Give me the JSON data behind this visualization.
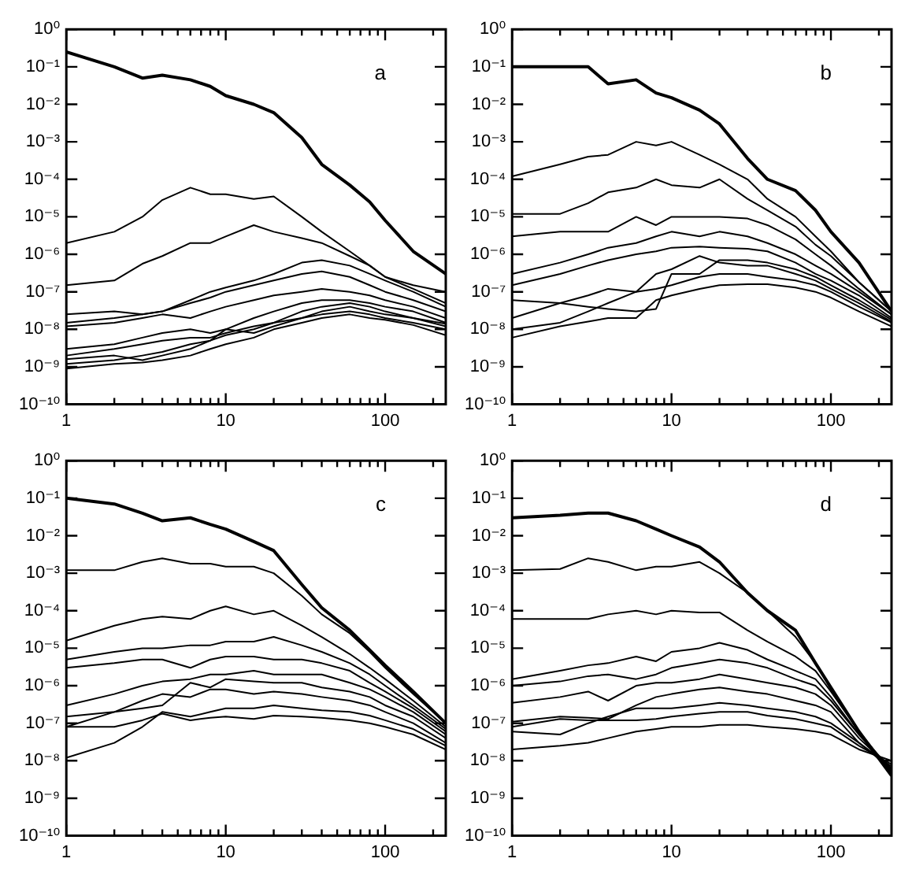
{
  "chart_data": [
    {
      "type": "line",
      "annotations": [
        "a"
      ],
      "log": "xy",
      "marker": "none",
      "xlim": [
        1,
        240
      ],
      "ylim": [
        1e-10,
        1
      ],
      "xticks": [
        1,
        {
          "value": 2,
          "label": null
        },
        {
          "value": 3,
          "label": null
        },
        {
          "value": 4,
          "label": null
        },
        {
          "value": 5,
          "label": null
        },
        {
          "value": 6,
          "label": null
        },
        {
          "value": 7,
          "label": null
        },
        {
          "value": 8,
          "label": null
        },
        {
          "value": 9,
          "label": null
        },
        10,
        {
          "value": 20,
          "label": null
        },
        {
          "value": 30,
          "label": null
        },
        {
          "value": 40,
          "label": null
        },
        {
          "value": 50,
          "label": null
        },
        {
          "value": 60,
          "label": null
        },
        {
          "value": 70,
          "label": null
        },
        {
          "value": 80,
          "label": null
        },
        {
          "value": 90,
          "label": null
        },
        100,
        {
          "value": 200,
          "label": null
        }
      ],
      "yticks": [
        {
          "value": 1,
          "label": "10⁰"
        },
        {
          "value": 0.1,
          "label": "10⁻¹"
        },
        {
          "value": 0.01,
          "label": "10⁻²"
        },
        {
          "value": 0.001,
          "label": "10⁻³"
        },
        {
          "value": 0.0001,
          "label": "10⁻⁴"
        },
        {
          "value": 1e-05,
          "label": "10⁻⁵"
        },
        {
          "value": 1e-06,
          "label": "10⁻⁶"
        },
        {
          "value": 1e-07,
          "label": "10⁻⁷"
        },
        {
          "value": 1e-08,
          "label": "10⁻⁸"
        },
        {
          "value": 1e-09,
          "label": "10⁻⁹"
        },
        {
          "value": 1e-10,
          "label": "10⁻¹⁰"
        }
      ],
      "x": [
        1,
        2,
        3,
        4,
        6,
        8,
        10,
        15,
        20,
        30,
        40,
        60,
        80,
        100,
        150,
        240
      ],
      "series": [
        {
          "color": "#000000",
          "values": [
            0.25,
            0.1,
            0.05,
            0.06,
            0.045,
            0.03,
            0.017,
            0.01,
            0.006,
            0.0013,
            0.00025,
            7e-05,
            2.5e-05,
            8e-06,
            1.2e-06,
            3e-07
          ]
        },
        {
          "color": "#000000",
          "values": [
            2e-06,
            4e-06,
            1e-05,
            2.8e-05,
            6e-05,
            4e-05,
            4e-05,
            3e-05,
            3.5e-05,
            1e-05,
            4e-06,
            1.2e-06,
            5e-07,
            2.5e-07,
            1.5e-07,
            1e-07
          ]
        },
        {
          "color": "#000000",
          "values": [
            1.5e-07,
            2e-07,
            5.6e-07,
            9e-07,
            2e-06,
            2e-06,
            3e-06,
            6e-06,
            4e-06,
            2.7e-06,
            2e-06,
            9e-07,
            5e-07,
            2.5e-07,
            1.2e-07,
            5e-08
          ]
        },
        {
          "color": "#000000",
          "values": [
            2.5e-08,
            3e-08,
            2.5e-08,
            3e-08,
            6e-08,
            1e-07,
            1.3e-07,
            2e-07,
            3e-07,
            6e-07,
            7e-07,
            5e-07,
            3e-07,
            2e-07,
            1e-07,
            4e-08
          ]
        },
        {
          "color": "#000000",
          "values": [
            1.5e-08,
            2e-08,
            2.5e-08,
            3e-08,
            5e-08,
            7e-08,
            1e-07,
            1.5e-07,
            2e-07,
            3e-07,
            3.5e-07,
            2.5e-07,
            1.5e-07,
            1e-07,
            6e-08,
            3e-08
          ]
        },
        {
          "color": "#000000",
          "values": [
            1.2e-08,
            1.5e-08,
            2e-08,
            2.5e-08,
            2e-08,
            3e-08,
            4e-08,
            6e-08,
            8e-08,
            1e-07,
            1.2e-07,
            1e-07,
            8e-08,
            6e-08,
            4e-08,
            2e-08
          ]
        },
        {
          "color": "#000000",
          "values": [
            3e-09,
            4e-09,
            6e-09,
            8e-09,
            1e-08,
            8e-09,
            1e-08,
            2e-08,
            3e-08,
            5e-08,
            6e-08,
            6e-08,
            5e-08,
            4e-08,
            3e-08,
            1.5e-08
          ]
        },
        {
          "color": "#000000",
          "values": [
            2e-09,
            3e-09,
            4e-09,
            5e-09,
            6e-09,
            6e-09,
            8e-09,
            1.2e-08,
            1.5e-08,
            3e-08,
            4e-08,
            5e-08,
            4e-08,
            3e-08,
            2e-08,
            1.2e-08
          ]
        },
        {
          "color": "#000000",
          "values": [
            1.6e-09,
            2e-09,
            1.5e-09,
            2e-09,
            3e-09,
            5e-09,
            1e-08,
            8e-09,
            1.2e-08,
            2e-08,
            3e-08,
            4e-08,
            3e-08,
            2.5e-08,
            2e-08,
            1.4e-08
          ]
        },
        {
          "color": "#000000",
          "values": [
            1.2e-09,
            1.5e-09,
            2e-09,
            2.5e-09,
            4e-09,
            5e-09,
            7e-09,
            1e-08,
            1.5e-08,
            2e-08,
            2.5e-08,
            3e-08,
            2.5e-08,
            2e-08,
            1.5e-08,
            1e-08
          ]
        },
        {
          "color": "#000000",
          "values": [
            9e-10,
            1.2e-09,
            1.3e-09,
            1.5e-09,
            2e-09,
            3e-09,
            4e-09,
            6e-09,
            1e-08,
            1.5e-08,
            2e-08,
            2.5e-08,
            2e-08,
            1.8e-08,
            1.3e-08,
            7e-09
          ]
        }
      ]
    },
    {
      "type": "line",
      "annotations": [
        "b"
      ],
      "log": "xy",
      "marker": "none",
      "xlim": [
        1,
        240
      ],
      "ylim": [
        1e-10,
        1
      ],
      "xticks": [
        1,
        {
          "value": 2,
          "label": null
        },
        {
          "value": 3,
          "label": null
        },
        {
          "value": 4,
          "label": null
        },
        {
          "value": 5,
          "label": null
        },
        {
          "value": 6,
          "label": null
        },
        {
          "value": 7,
          "label": null
        },
        {
          "value": 8,
          "label": null
        },
        {
          "value": 9,
          "label": null
        },
        10,
        {
          "value": 20,
          "label": null
        },
        {
          "value": 30,
          "label": null
        },
        {
          "value": 40,
          "label": null
        },
        {
          "value": 50,
          "label": null
        },
        {
          "value": 60,
          "label": null
        },
        {
          "value": 70,
          "label": null
        },
        {
          "value": 80,
          "label": null
        },
        {
          "value": 90,
          "label": null
        },
        100,
        {
          "value": 200,
          "label": null
        }
      ],
      "yticks": [
        {
          "value": 1,
          "label": "10⁰"
        },
        {
          "value": 0.1,
          "label": "10⁻¹"
        },
        {
          "value": 0.01,
          "label": "10⁻²"
        },
        {
          "value": 0.001,
          "label": "10⁻³"
        },
        {
          "value": 0.0001,
          "label": "10⁻⁴"
        },
        {
          "value": 1e-05,
          "label": "10⁻⁵"
        },
        {
          "value": 1e-06,
          "label": "10⁻⁶"
        },
        {
          "value": 1e-07,
          "label": "10⁻⁷"
        },
        {
          "value": 1e-08,
          "label": "10⁻⁸"
        },
        {
          "value": 1e-09,
          "label": "10⁻⁹"
        },
        {
          "value": 1e-10,
          "label": "10⁻¹⁰"
        }
      ],
      "x": [
        1,
        2,
        3,
        4,
        6,
        8,
        10,
        15,
        20,
        30,
        40,
        60,
        80,
        100,
        150,
        240
      ],
      "series": [
        {
          "color": "#000000",
          "values": [
            0.1,
            0.1,
            0.1,
            0.035,
            0.045,
            0.02,
            0.015,
            0.007,
            0.003,
            0.00036,
            0.0001,
            5e-05,
            1.5e-05,
            4e-06,
            6e-07,
            3e-08
          ]
        },
        {
          "color": "#000000",
          "values": [
            0.00012,
            0.00025,
            0.0004,
            0.00045,
            0.001,
            0.0008,
            0.001,
            0.00045,
            0.00025,
            0.0001,
            3e-05,
            1e-05,
            3e-06,
            1.2e-06,
            1.8e-07,
            3e-08
          ]
        },
        {
          "color": "#000000",
          "values": [
            1.2e-05,
            1.2e-05,
            2.3e-05,
            4.5e-05,
            6e-05,
            0.0001,
            7e-05,
            6e-05,
            0.0001,
            3e-05,
            1.5e-05,
            5.5e-06,
            1.8e-06,
            9e-07,
            1.8e-07,
            3e-08
          ]
        },
        {
          "color": "#000000",
          "values": [
            3e-06,
            4e-06,
            4e-06,
            4e-06,
            1e-05,
            6e-06,
            1e-05,
            1e-05,
            1e-05,
            9e-06,
            6e-06,
            2.5e-06,
            1e-06,
            5e-07,
            1.2e-07,
            2.5e-08
          ]
        },
        {
          "color": "#000000",
          "values": [
            3e-07,
            6e-07,
            1e-06,
            1.5e-06,
            2e-06,
            3e-06,
            4e-06,
            3e-06,
            4e-06,
            3e-06,
            2e-06,
            1e-06,
            5e-07,
            3e-07,
            1e-07,
            2.5e-08
          ]
        },
        {
          "color": "#000000",
          "values": [
            1.5e-07,
            3e-07,
            5e-07,
            7e-07,
            1e-06,
            1.2e-06,
            1.5e-06,
            1.6e-06,
            1.5e-06,
            1.4e-06,
            1.2e-06,
            6e-07,
            3e-07,
            2e-07,
            8e-08,
            2e-08
          ]
        },
        {
          "color": "#000000",
          "values": [
            6e-08,
            5e-08,
            4e-08,
            3.5e-08,
            3e-08,
            3.5e-08,
            3e-07,
            3e-07,
            7e-07,
            7e-07,
            6e-07,
            4e-07,
            2.5e-07,
            1.5e-07,
            6e-08,
            1.8e-08
          ]
        },
        {
          "color": "#000000",
          "values": [
            2e-08,
            5e-08,
            8e-08,
            1.2e-07,
            1e-07,
            3e-07,
            4e-07,
            9e-07,
            6e-07,
            5e-07,
            5e-07,
            3e-07,
            2e-07,
            1.2e-07,
            5e-08,
            1.6e-08
          ]
        },
        {
          "color": "#000000",
          "values": [
            1e-08,
            1.5e-08,
            3e-08,
            5e-08,
            1e-07,
            1.2e-07,
            1.5e-07,
            2.5e-07,
            3e-07,
            3e-07,
            2.5e-07,
            2e-07,
            1.5e-07,
            1e-07,
            4e-08,
            1.5e-08
          ]
        },
        {
          "color": "#000000",
          "values": [
            6e-09,
            1.2e-08,
            1.6e-08,
            2e-08,
            2e-08,
            6e-08,
            8e-08,
            1.2e-07,
            1.5e-07,
            1.6e-07,
            1.6e-07,
            1.3e-07,
            1e-07,
            7e-08,
            3e-08,
            1.2e-08
          ]
        }
      ]
    },
    {
      "type": "line",
      "annotations": [
        "c"
      ],
      "log": "xy",
      "marker": "none",
      "xlim": [
        1,
        240
      ],
      "ylim": [
        1e-10,
        1
      ],
      "xticks": [
        1,
        {
          "value": 2,
          "label": null
        },
        {
          "value": 3,
          "label": null
        },
        {
          "value": 4,
          "label": null
        },
        {
          "value": 5,
          "label": null
        },
        {
          "value": 6,
          "label": null
        },
        {
          "value": 7,
          "label": null
        },
        {
          "value": 8,
          "label": null
        },
        {
          "value": 9,
          "label": null
        },
        10,
        {
          "value": 20,
          "label": null
        },
        {
          "value": 30,
          "label": null
        },
        {
          "value": 40,
          "label": null
        },
        {
          "value": 50,
          "label": null
        },
        {
          "value": 60,
          "label": null
        },
        {
          "value": 70,
          "label": null
        },
        {
          "value": 80,
          "label": null
        },
        {
          "value": 90,
          "label": null
        },
        100,
        {
          "value": 200,
          "label": null
        }
      ],
      "yticks": [
        {
          "value": 1,
          "label": "10⁰"
        },
        {
          "value": 0.1,
          "label": "10⁻¹"
        },
        {
          "value": 0.01,
          "label": "10⁻²"
        },
        {
          "value": 0.001,
          "label": "10⁻³"
        },
        {
          "value": 0.0001,
          "label": "10⁻⁴"
        },
        {
          "value": 1e-05,
          "label": "10⁻⁵"
        },
        {
          "value": 1e-06,
          "label": "10⁻⁶"
        },
        {
          "value": 1e-07,
          "label": "10⁻⁷"
        },
        {
          "value": 1e-08,
          "label": "10⁻⁸"
        },
        {
          "value": 1e-09,
          "label": "10⁻⁹"
        },
        {
          "value": 1e-10,
          "label": "10⁻¹⁰"
        }
      ],
      "x": [
        1,
        2,
        3,
        4,
        6,
        8,
        10,
        15,
        20,
        30,
        40,
        60,
        80,
        100,
        150,
        240
      ],
      "series": [
        {
          "color": "#000000",
          "values": [
            0.1,
            0.07,
            0.04,
            0.025,
            0.03,
            0.02,
            0.015,
            0.007,
            0.004,
            0.0005,
            0.00012,
            3e-05,
            9e-06,
            3.5e-06,
            7e-07,
            1e-07
          ]
        },
        {
          "color": "#000000",
          "values": [
            0.0012,
            0.0012,
            0.002,
            0.0025,
            0.0018,
            0.0018,
            0.0015,
            0.0015,
            0.001,
            0.00025,
            8e-05,
            2.5e-05,
            8e-06,
            3e-06,
            6e-07,
            1e-07
          ]
        },
        {
          "color": "#000000",
          "values": [
            1.6e-05,
            4e-05,
            6e-05,
            7e-05,
            6e-05,
            0.0001,
            0.00013,
            8e-05,
            0.0001,
            4e-05,
            2e-05,
            7e-06,
            3e-06,
            1.5e-06,
            4e-07,
            8e-08
          ]
        },
        {
          "color": "#000000",
          "values": [
            5e-06,
            8e-06,
            1e-05,
            1e-05,
            1.2e-05,
            1.2e-05,
            1.5e-05,
            1.5e-05,
            2e-05,
            1.2e-05,
            8e-06,
            4e-06,
            2e-06,
            1e-06,
            3e-07,
            7e-08
          ]
        },
        {
          "color": "#000000",
          "values": [
            3e-06,
            4e-06,
            5e-06,
            5e-06,
            3e-06,
            5e-06,
            6e-06,
            6e-06,
            5e-06,
            5e-06,
            4e-06,
            2.5e-06,
            1.2e-06,
            7e-07,
            2.5e-07,
            6e-08
          ]
        },
        {
          "color": "#000000",
          "values": [
            3e-07,
            6e-07,
            1e-06,
            1.3e-06,
            1.5e-06,
            2e-06,
            2e-06,
            2.5e-06,
            2e-06,
            2e-06,
            2e-06,
            1.2e-06,
            8e-07,
            5e-07,
            2e-07,
            5e-08
          ]
        },
        {
          "color": "#000000",
          "values": [
            1.5e-07,
            2e-07,
            2.5e-07,
            3e-07,
            1.2e-06,
            9e-07,
            1.5e-06,
            1.3e-06,
            1.2e-06,
            1.2e-06,
            9e-07,
            7e-07,
            5e-07,
            3e-07,
            1.5e-07,
            4e-08
          ]
        },
        {
          "color": "#000000",
          "values": [
            8e-08,
            2e-07,
            4e-07,
            6e-07,
            5e-07,
            8e-07,
            8e-07,
            6e-07,
            7e-07,
            6e-07,
            5e-07,
            4e-07,
            3e-07,
            2e-07,
            1e-07,
            3e-08
          ]
        },
        {
          "color": "#000000",
          "values": [
            1.2e-08,
            3e-08,
            8e-08,
            2e-07,
            1.5e-07,
            2e-07,
            2.5e-07,
            2.5e-07,
            3e-07,
            2.5e-07,
            2.2e-07,
            2e-07,
            1.6e-07,
            1.2e-07,
            7e-08,
            2.5e-08
          ]
        },
        {
          "color": "#000000",
          "values": [
            8e-08,
            8e-08,
            1.2e-07,
            1.8e-07,
            1.2e-07,
            1.4e-07,
            1.5e-07,
            1.3e-07,
            1.6e-07,
            1.5e-07,
            1.4e-07,
            1.2e-07,
            1e-07,
            8e-08,
            5e-08,
            2e-08
          ]
        }
      ]
    },
    {
      "type": "line",
      "annotations": [
        "d"
      ],
      "log": "xy",
      "marker": "none",
      "xlim": [
        1,
        240
      ],
      "ylim": [
        1e-10,
        1
      ],
      "xticks": [
        1,
        {
          "value": 2,
          "label": null
        },
        {
          "value": 3,
          "label": null
        },
        {
          "value": 4,
          "label": null
        },
        {
          "value": 5,
          "label": null
        },
        {
          "value": 6,
          "label": null
        },
        {
          "value": 7,
          "label": null
        },
        {
          "value": 8,
          "label": null
        },
        {
          "value": 9,
          "label": null
        },
        10,
        {
          "value": 20,
          "label": null
        },
        {
          "value": 30,
          "label": null
        },
        {
          "value": 40,
          "label": null
        },
        {
          "value": 50,
          "label": null
        },
        {
          "value": 60,
          "label": null
        },
        {
          "value": 70,
          "label": null
        },
        {
          "value": 80,
          "label": null
        },
        {
          "value": 90,
          "label": null
        },
        100,
        {
          "value": 200,
          "label": null
        }
      ],
      "yticks": [
        {
          "value": 1,
          "label": "10⁰"
        },
        {
          "value": 0.1,
          "label": "10⁻¹"
        },
        {
          "value": 0.01,
          "label": "10⁻²"
        },
        {
          "value": 0.001,
          "label": "10⁻³"
        },
        {
          "value": 0.0001,
          "label": "10⁻⁴"
        },
        {
          "value": 1e-05,
          "label": "10⁻⁵"
        },
        {
          "value": 1e-06,
          "label": "10⁻⁶"
        },
        {
          "value": 1e-07,
          "label": "10⁻⁷"
        },
        {
          "value": 1e-08,
          "label": "10⁻⁸"
        },
        {
          "value": 1e-09,
          "label": "10⁻⁹"
        },
        {
          "value": 1e-10,
          "label": "10⁻¹⁰"
        }
      ],
      "x": [
        1,
        2,
        3,
        4,
        6,
        8,
        10,
        15,
        20,
        30,
        40,
        60,
        80,
        100,
        150,
        240
      ],
      "series": [
        {
          "color": "#000000",
          "values": [
            0.03,
            0.035,
            0.04,
            0.04,
            0.025,
            0.015,
            0.01,
            0.005,
            0.002,
            0.0003,
            0.0001,
            3e-05,
            4e-06,
            9e-07,
            6e-08,
            4e-09
          ]
        },
        {
          "color": "#000000",
          "values": [
            0.0012,
            0.0013,
            0.0025,
            0.002,
            0.0012,
            0.0015,
            0.0015,
            0.002,
            0.001,
            0.0003,
            0.0001,
            2e-05,
            4e-06,
            8e-07,
            6e-08,
            5e-09
          ]
        },
        {
          "color": "#000000",
          "values": [
            6e-05,
            6e-05,
            6e-05,
            8e-05,
            0.0001,
            8e-05,
            0.0001,
            9e-05,
            9e-05,
            3e-05,
            1.5e-05,
            6e-06,
            2.5e-06,
            7e-07,
            6e-08,
            5e-09
          ]
        },
        {
          "color": "#000000",
          "values": [
            1.5e-06,
            2.5e-06,
            3.5e-06,
            4e-06,
            6e-06,
            4.5e-06,
            8e-06,
            1e-05,
            1.4e-05,
            9e-06,
            5e-06,
            2.5e-06,
            1.5e-06,
            5e-07,
            5e-08,
            5e-09
          ]
        },
        {
          "color": "#000000",
          "values": [
            1e-06,
            1.3e-06,
            1.8e-06,
            2e-06,
            1.5e-06,
            2e-06,
            3e-06,
            4e-06,
            5e-06,
            4e-06,
            3e-06,
            1.5e-06,
            1e-06,
            4e-07,
            5e-08,
            6e-09
          ]
        },
        {
          "color": "#000000",
          "values": [
            3.5e-07,
            5e-07,
            7e-07,
            4e-07,
            1e-06,
            1.2e-06,
            1.2e-06,
            1.5e-06,
            2e-06,
            1.5e-06,
            1.2e-06,
            9e-07,
            6e-07,
            3e-07,
            4e-08,
            6e-09
          ]
        },
        {
          "color": "#000000",
          "values": [
            1.1e-07,
            1.5e-07,
            1.4e-07,
            1.3e-07,
            3e-07,
            5e-07,
            6e-07,
            8e-07,
            9e-07,
            7e-07,
            6e-07,
            4e-07,
            3e-07,
            2e-07,
            3e-08,
            6e-09
          ]
        },
        {
          "color": "#000000",
          "values": [
            6e-08,
            5e-08,
            1e-07,
            1.5e-07,
            2.5e-07,
            2.5e-07,
            2.5e-07,
            3e-07,
            3.5e-07,
            3e-07,
            2.5e-07,
            2e-07,
            1.5e-07,
            1e-07,
            3e-08,
            7e-09
          ]
        },
        {
          "color": "#000000",
          "values": [
            8e-08,
            1.3e-07,
            1.2e-07,
            1.2e-07,
            1.2e-07,
            1.3e-07,
            1.5e-07,
            1.8e-07,
            2e-07,
            2e-07,
            1.6e-07,
            1.3e-07,
            1e-07,
            8e-08,
            2.5e-08,
            8e-09
          ]
        },
        {
          "color": "#000000",
          "values": [
            2e-08,
            2.5e-08,
            3e-08,
            4e-08,
            6e-08,
            7e-08,
            8e-08,
            8e-08,
            9e-08,
            9e-08,
            8e-08,
            7e-08,
            6e-08,
            5e-08,
            2e-08,
            1e-08
          ]
        }
      ]
    }
  ]
}
